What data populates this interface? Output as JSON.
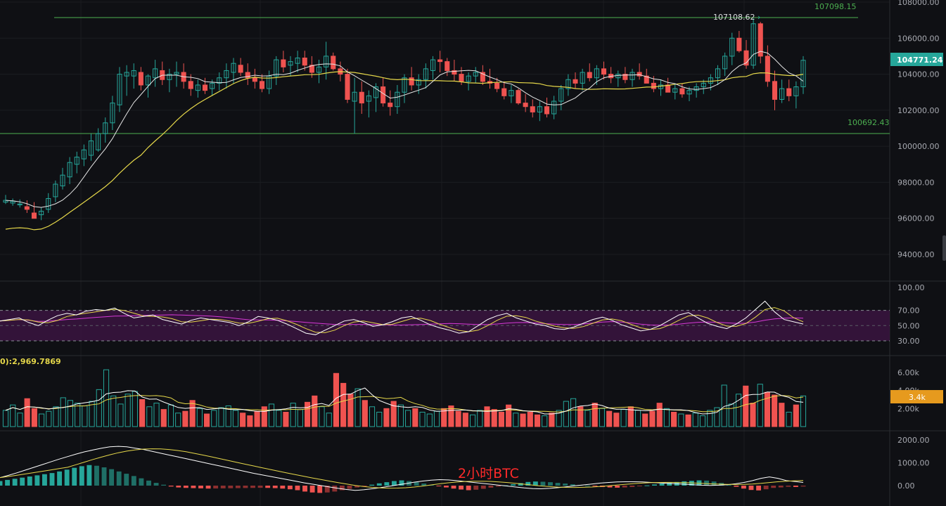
{
  "watermark": "2小时BTC",
  "price_panel": {
    "current_price_label": "104771.24",
    "high_label": "107108.62",
    "upper_line_label": "107098.15",
    "lower_line_label": "100692.43",
    "axis_ticks": [
      "108000.00",
      "106000.00",
      "104000.00",
      "102000.00",
      "100000.00",
      "98000.00",
      "96000.00",
      "94000.00"
    ],
    "colors": {
      "up": "#26a69a",
      "down": "#ef5350",
      "ma_fast": "#e6e6e6",
      "ma_slow": "#e6d84a",
      "level_line": "#4caf50",
      "current_badge": "#26a69a"
    }
  },
  "rsi_panel": {
    "axis_ticks": [
      "100.00",
      "70.00",
      "50.00",
      "30.00"
    ],
    "band": [
      30,
      70
    ],
    "colors": {
      "band": "#3a1440",
      "rsi": "#ffffff",
      "ma1": "#e6d84a",
      "ma2": "#d63ad6"
    }
  },
  "volume_panel": {
    "header": "0):2,969.7869",
    "axis_ticks": [
      "6.00k",
      "4.00k",
      "2.00k"
    ],
    "current_label": "3.4k",
    "colors": {
      "badge": "#e69a1e"
    }
  },
  "macd_panel": {
    "axis_ticks": [
      "2000.00",
      "1000.00",
      "0.00"
    ]
  },
  "chart_data": {
    "type": "candlestick",
    "ylim": [
      93000,
      108300
    ],
    "candles": [
      [
        96800,
        97300,
        96900,
        97000
      ],
      [
        96700,
        97100,
        96850,
        96950
      ],
      [
        96600,
        97050,
        96750,
        96800
      ],
      [
        96300,
        97000,
        96650,
        96500
      ],
      [
        96100,
        96900,
        96300,
        96000
      ],
      [
        95900,
        96600,
        96200,
        96400
      ],
      [
        96300,
        97400,
        96500,
        97100
      ],
      [
        96900,
        98100,
        97200,
        97900
      ],
      [
        97600,
        98800,
        97800,
        98400
      ],
      [
        97900,
        99400,
        98300,
        99100
      ],
      [
        98500,
        99700,
        99000,
        99400
      ],
      [
        98900,
        100100,
        99300,
        99800
      ],
      [
        99200,
        100700,
        99500,
        100300
      ],
      [
        99700,
        101000,
        99800,
        100700
      ],
      [
        100200,
        101600,
        100700,
        101300
      ],
      [
        100900,
        102800,
        101300,
        102400
      ],
      [
        101900,
        104400,
        102300,
        104000
      ],
      [
        102800,
        104500,
        103900,
        104100
      ],
      [
        103200,
        104600,
        103900,
        104200
      ],
      [
        103100,
        104400,
        104100,
        103400
      ],
      [
        102700,
        104000,
        103400,
        103900
      ],
      [
        103300,
        104800,
        103800,
        104300
      ],
      [
        103400,
        104700,
        104200,
        103700
      ],
      [
        103000,
        104300,
        103700,
        104000
      ],
      [
        103300,
        104700,
        104000,
        104100
      ],
      [
        103200,
        104600,
        104100,
        103600
      ],
      [
        102800,
        104000,
        103600,
        103200
      ],
      [
        102700,
        103700,
        103100,
        103400
      ],
      [
        102900,
        103800,
        103400,
        103100
      ],
      [
        102800,
        103700,
        103200,
        103500
      ],
      [
        103100,
        104100,
        103500,
        103800
      ],
      [
        103200,
        104600,
        103800,
        104200
      ],
      [
        103500,
        104900,
        104100,
        104600
      ],
      [
        103900,
        104900,
        104500,
        104100
      ],
      [
        103400,
        104600,
        104100,
        103800
      ],
      [
        103200,
        104300,
        103800,
        103600
      ],
      [
        103000,
        104000,
        103600,
        103200
      ],
      [
        102900,
        104200,
        103200,
        103900
      ],
      [
        103400,
        105000,
        103900,
        104800
      ],
      [
        104100,
        105300,
        104800,
        104400
      ],
      [
        103900,
        105000,
        104500,
        104700
      ],
      [
        104100,
        105300,
        104600,
        104900
      ],
      [
        104200,
        105300,
        104900,
        104500
      ],
      [
        103800,
        105000,
        104500,
        104100
      ],
      [
        103500,
        104800,
        104100,
        104400
      ],
      [
        103700,
        105800,
        104400,
        105000
      ],
      [
        104200,
        105200,
        105000,
        104300
      ],
      [
        103600,
        104700,
        104300,
        104000
      ],
      [
        102400,
        104300,
        104000,
        102600
      ],
      [
        100700,
        103800,
        102500,
        103000
      ],
      [
        101800,
        103600,
        103000,
        102400
      ],
      [
        101600,
        103100,
        102500,
        102800
      ],
      [
        101900,
        103500,
        102700,
        103300
      ],
      [
        102200,
        103800,
        103300,
        102400
      ],
      [
        101700,
        103100,
        102400,
        102200
      ],
      [
        101800,
        103400,
        102200,
        103000
      ],
      [
        102400,
        104000,
        103000,
        103800
      ],
      [
        103100,
        104400,
        103800,
        103400
      ],
      [
        102900,
        104000,
        103400,
        103700
      ],
      [
        103200,
        104600,
        103700,
        104300
      ],
      [
        103700,
        105000,
        104200,
        104800
      ],
      [
        104100,
        105300,
        104800,
        104700
      ],
      [
        103900,
        104900,
        104700,
        104200
      ],
      [
        103600,
        104800,
        104200,
        104000
      ],
      [
        103400,
        104400,
        104000,
        103600
      ],
      [
        103100,
        104100,
        103600,
        103900
      ],
      [
        103500,
        104400,
        103900,
        104100
      ],
      [
        103400,
        104500,
        104100,
        103600
      ],
      [
        103200,
        104300,
        103600,
        103500
      ],
      [
        103000,
        103800,
        103500,
        103200
      ],
      [
        102600,
        103600,
        103200,
        102800
      ],
      [
        102400,
        103400,
        102800,
        103100
      ],
      [
        102300,
        103200,
        103100,
        102400
      ],
      [
        101900,
        102900,
        102400,
        102200
      ],
      [
        101600,
        102600,
        102200,
        101900
      ],
      [
        101400,
        102500,
        101900,
        102200
      ],
      [
        101600,
        102700,
        102200,
        101800
      ],
      [
        101500,
        102800,
        101800,
        102500
      ],
      [
        102000,
        103400,
        102500,
        103200
      ],
      [
        102800,
        104000,
        103200,
        103700
      ],
      [
        103200,
        104100,
        103700,
        103500
      ],
      [
        103100,
        104300,
        103500,
        104100
      ],
      [
        103600,
        104600,
        104100,
        103800
      ],
      [
        103400,
        104500,
        103800,
        104300
      ],
      [
        103700,
        104700,
        104300,
        104000
      ],
      [
        103500,
        104400,
        104000,
        103800
      ],
      [
        103300,
        104200,
        103800,
        104000
      ],
      [
        103500,
        104400,
        104000,
        103700
      ],
      [
        103300,
        104300,
        103700,
        104100
      ],
      [
        103700,
        104600,
        104100,
        103900
      ],
      [
        103500,
        104300,
        103900,
        103500
      ],
      [
        103000,
        103900,
        103500,
        103200
      ],
      [
        102800,
        103700,
        103200,
        103400
      ],
      [
        103000,
        103800,
        103400,
        103000
      ],
      [
        102600,
        103500,
        103000,
        103200
      ],
      [
        102700,
        103500,
        103200,
        102900
      ],
      [
        102500,
        103300,
        102900,
        103100
      ],
      [
        102700,
        103500,
        103100,
        103300
      ],
      [
        102900,
        103700,
        103300,
        103500
      ],
      [
        103100,
        104000,
        103500,
        103800
      ],
      [
        103400,
        104500,
        103800,
        104300
      ],
      [
        103900,
        105200,
        104300,
        105000
      ],
      [
        104500,
        106300,
        105000,
        106000
      ],
      [
        105200,
        106400,
        106000,
        105300
      ],
      [
        104300,
        105900,
        105300,
        104500
      ],
      [
        104300,
        107100,
        104500,
        106800
      ],
      [
        104600,
        106900,
        106800,
        105000
      ],
      [
        103300,
        105600,
        105000,
        103600
      ],
      [
        102000,
        104200,
        103600,
        102600
      ],
      [
        102400,
        103700,
        102600,
        103200
      ],
      [
        102500,
        103700,
        103200,
        102800
      ],
      [
        102100,
        103600,
        102800,
        103300
      ],
      [
        102900,
        105000,
        103300,
        104771
      ]
    ],
    "rsi": [
      56,
      58,
      60,
      54,
      50,
      57,
      63,
      66,
      64,
      69,
      71,
      70,
      73,
      66,
      60,
      62,
      64,
      58,
      55,
      52,
      57,
      60,
      58,
      56,
      54,
      50,
      55,
      62,
      60,
      57,
      52,
      46,
      40,
      38,
      44,
      50,
      56,
      58,
      54,
      49,
      51,
      55,
      60,
      62,
      57,
      51,
      47,
      44,
      40,
      42,
      50,
      58,
      63,
      66,
      60,
      56,
      52,
      50,
      46,
      45,
      48,
      53,
      58,
      61,
      57,
      51,
      47,
      43,
      45,
      50,
      57,
      64,
      67,
      60,
      53,
      49,
      46,
      52,
      60,
      71,
      82,
      68,
      58,
      55,
      52
    ],
    "volume": [
      1800,
      2400,
      1500,
      3100,
      2000,
      1400,
      1700,
      2200,
      3200,
      2900,
      2600,
      2300,
      2800,
      4100,
      6300,
      3400,
      2500,
      3600,
      3900,
      3000,
      2200,
      2600,
      1900,
      2400,
      1500,
      1700,
      2900,
      2000,
      1400,
      1800,
      2100,
      2300,
      1800,
      1500,
      1200,
      1700,
      2200,
      2500,
      1800,
      1600,
      2600,
      1900,
      2700,
      3400,
      2200,
      1500,
      5900,
      4800,
      3600,
      4200,
      2900,
      2200,
      1600,
      2000,
      2800,
      2400,
      1800,
      2000,
      1600,
      1400,
      1700,
      2000,
      2300,
      1700,
      1500,
      1300,
      1800,
      2200,
      1900,
      1600,
      2400,
      1500,
      1400,
      1600,
      1300,
      1200,
      1500,
      1800,
      2800,
      3100,
      2200,
      1800,
      2600,
      2000,
      1700,
      1500,
      1900,
      2200,
      1800,
      1400,
      1700,
      2600,
      2000,
      1600,
      1400,
      1300,
      1500,
      1200,
      1800,
      2100,
      4600,
      2500,
      3600,
      4500,
      2600,
      4700,
      3800,
      3500,
      2600,
      1600,
      2400,
      3400
    ],
    "macd_histogram": [
      200,
      250,
      300,
      350,
      400,
      450,
      500,
      550,
      620,
      700,
      780,
      850,
      900,
      870,
      800,
      720,
      620,
      520,
      420,
      320,
      220,
      120,
      40,
      -40,
      -80,
      -100,
      -110,
      -120,
      -130,
      -125,
      -120,
      -115,
      -110,
      -105,
      -100,
      -95,
      -100,
      -110,
      -130,
      -160,
      -200,
      -260,
      -300,
      -320,
      -300,
      -260,
      -200,
      -140,
      -80,
      -20,
      40,
      100,
      150,
      200,
      230,
      200,
      150,
      90,
      30,
      -30,
      -80,
      -130,
      -170,
      -200,
      -180,
      -140,
      -90,
      -40,
      10,
      60,
      110,
      160,
      180,
      170,
      150,
      120,
      90,
      60,
      30,
      0,
      -30,
      -60,
      -80,
      -90,
      -80,
      -60,
      -30,
      10,
      50,
      90,
      130,
      160,
      190,
      210,
      230,
      220,
      180,
      120,
      40,
      -50,
      -130,
      -190,
      -210,
      -160,
      -100,
      -80,
      -50,
      -60,
      -40
    ],
    "macd_line": [
      350,
      450,
      560,
      680,
      800,
      920,
      1040,
      1160,
      1270,
      1380,
      1480,
      1560,
      1640,
      1700,
      1720,
      1700,
      1640,
      1580,
      1500,
      1420,
      1340,
      1260,
      1180,
      1100,
      1020,
      940,
      860,
      780,
      700,
      620,
      540,
      470,
      400,
      330,
      260,
      190,
      120,
      60,
      0,
      -60,
      -120,
      -170,
      -210,
      -180,
      -140,
      -90,
      -30,
      30,
      90,
      150,
      200,
      240,
      260,
      250,
      220,
      180,
      140,
      100,
      60,
      20,
      -20,
      -60,
      -100,
      -130,
      -140,
      -120,
      -90,
      -50,
      -10,
      30,
      70,
      110,
      140,
      160,
      170,
      170,
      160,
      140,
      120,
      100,
      80,
      60,
      40,
      20,
      10,
      20,
      40,
      80,
      140,
      220,
      320,
      380,
      320,
      220,
      180,
      140
    ]
  }
}
